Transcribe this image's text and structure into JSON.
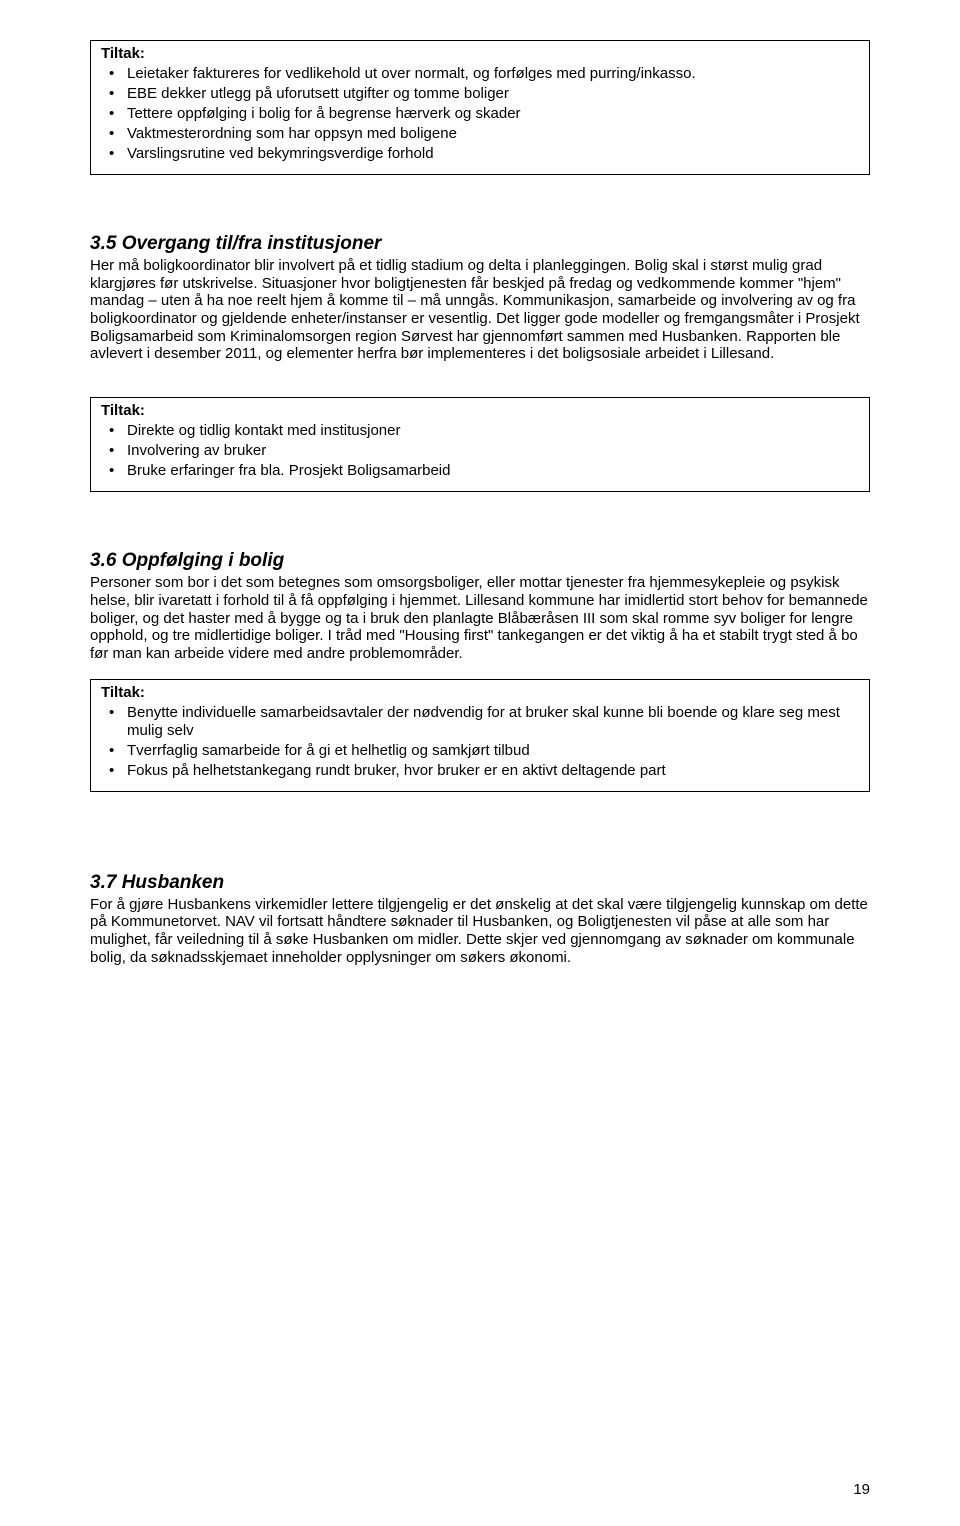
{
  "box1": {
    "label": "Tiltak:",
    "items": [
      "Leietaker faktureres for vedlikehold ut over normalt, og forfølges med purring/inkasso.",
      "EBE dekker utlegg på uforutsett utgifter og tomme boliger",
      "Tettere oppfølging i bolig for å begrense hærverk og skader",
      "Vaktmesterordning som har oppsyn med boligene",
      "Varslingsrutine ved bekymringsverdige forhold"
    ]
  },
  "section35": {
    "heading": "3.5 Overgang til/fra institusjoner",
    "body": "Her må boligkoordinator blir involvert på et tidlig stadium og delta i planleggingen. Bolig skal i størst mulig grad klargjøres før utskrivelse. Situasjoner hvor boligtjenesten får beskjed på fredag og vedkommende kommer \"hjem\" mandag – uten å ha noe reelt hjem å komme til – må unngås. Kommunikasjon, samarbeide og involvering av og fra boligkoordinator og gjeldende enheter/instanser er vesentlig. Det ligger gode modeller og fremgangsmåter i Prosjekt Boligsamarbeid som Kriminalomsorgen region Sørvest har gjennomført sammen med Husbanken. Rapporten ble avlevert i desember 2011, og elementer herfra bør implementeres i det boligsosiale arbeidet i Lillesand."
  },
  "box2": {
    "label": "Tiltak:",
    "items": [
      "Direkte og tidlig kontakt med institusjoner",
      "Involvering av bruker",
      "Bruke erfaringer fra bla. Prosjekt Boligsamarbeid"
    ]
  },
  "section36": {
    "heading": "3.6 Oppfølging i bolig",
    "body": "Personer som bor i det som betegnes som omsorgsboliger, eller mottar tjenester fra hjemmesykepleie og psykisk helse, blir ivaretatt i forhold til å få oppfølging i hjemmet. Lillesand kommune har imidlertid stort behov for bemannede boliger, og det haster med å bygge og ta i bruk den planlagte Blåbæråsen III som skal romme syv boliger for lengre opphold, og tre midlertidige boliger. I tråd med \"Housing first\" tankegangen er det viktig å ha et stabilt trygt sted å bo før man kan arbeide videre med andre problemområder."
  },
  "box3": {
    "label": "Tiltak:",
    "items": [
      "Benytte individuelle samarbeidsavtaler der nødvendig for at bruker skal kunne bli boende og klare seg mest mulig selv",
      "Tverrfaglig samarbeide for å gi et helhetlig og samkjørt tilbud",
      "Fokus på helhetstankegang rundt bruker, hvor bruker er en aktivt deltagende part"
    ]
  },
  "section37": {
    "heading": "3.7 Husbanken",
    "body": "For å gjøre Husbankens virkemidler lettere tilgjengelig er det ønskelig at det skal være tilgjengelig kunnskap om dette på Kommunetorvet. NAV vil fortsatt håndtere søknader til Husbanken, og Boligtjenesten vil påse at alle som har mulighet, får veiledning til å søke Husbanken om midler. Dette skjer ved gjennomgang av søknader om kommunale bolig, da søknadsskjemaet inneholder opplysninger om søkers økonomi."
  },
  "pageNumber": "19"
}
